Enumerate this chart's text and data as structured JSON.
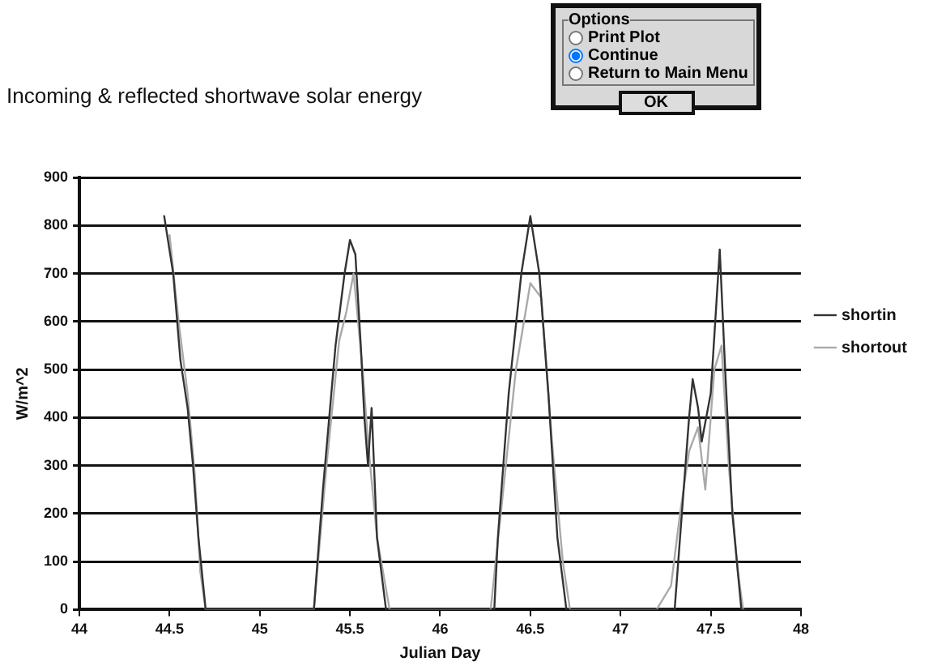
{
  "chart_data": [
    {
      "type": "line",
      "title": "Incoming & reflected shortwave solar energy",
      "xlabel": "Julian Day",
      "ylabel": "W/m^2",
      "xlim": [
        44,
        48
      ],
      "xticks": [
        44,
        44.5,
        45,
        45.5,
        46,
        46.5,
        47,
        47.5,
        48
      ],
      "ylim": [
        0,
        900
      ],
      "yticks": [
        0,
        100,
        200,
        300,
        400,
        500,
        600,
        700,
        800,
        900
      ],
      "grid": "y",
      "legend": "right",
      "marker": "none",
      "series": [
        {
          "name": "shortin",
          "color": "#333333",
          "x": [
            44.47,
            44.52,
            44.56,
            44.6,
            44.63,
            44.66,
            44.7,
            45.3,
            45.35,
            45.42,
            45.47,
            45.5,
            45.53,
            45.56,
            45.58,
            45.6,
            45.62,
            45.65,
            45.7,
            46.3,
            46.32,
            46.38,
            46.45,
            46.5,
            46.55,
            46.6,
            46.65,
            46.7,
            47.3,
            47.38,
            47.4,
            47.43,
            47.45,
            47.5,
            47.55,
            47.58,
            47.62,
            47.67,
            48
          ],
          "values": [
            820,
            700,
            520,
            420,
            300,
            150,
            0,
            0,
            250,
            550,
            700,
            770,
            740,
            550,
            400,
            300,
            420,
            150,
            0,
            0,
            150,
            450,
            700,
            820,
            700,
            450,
            150,
            0,
            0,
            400,
            480,
            420,
            350,
            450,
            750,
            500,
            200,
            0,
            0
          ]
        },
        {
          "name": "shortout",
          "color": "#aaaaaa",
          "x": [
            44.5,
            44.55,
            44.6,
            44.64,
            44.67,
            44.7,
            45.3,
            45.37,
            45.44,
            45.48,
            45.52,
            45.57,
            45.6,
            45.65,
            45.72,
            46.28,
            46.35,
            46.42,
            46.5,
            46.56,
            46.62,
            46.68,
            46.72,
            47.2,
            47.28,
            47.33,
            47.38,
            47.43,
            47.47,
            47.52,
            47.56,
            47.6,
            47.65,
            47.68
          ],
          "values": [
            780,
            600,
            450,
            280,
            80,
            0,
            0,
            300,
            560,
            620,
            700,
            500,
            350,
            150,
            0,
            0,
            250,
            500,
            680,
            650,
            350,
            100,
            0,
            0,
            50,
            200,
            330,
            380,
            250,
            500,
            550,
            300,
            80,
            0
          ]
        }
      ]
    },
    {
      "type": "other",
      "title": "Options",
      "annotations": [
        "Print Plot",
        "Continue",
        "Return to Main Menu",
        "OK"
      ]
    }
  ]
}
